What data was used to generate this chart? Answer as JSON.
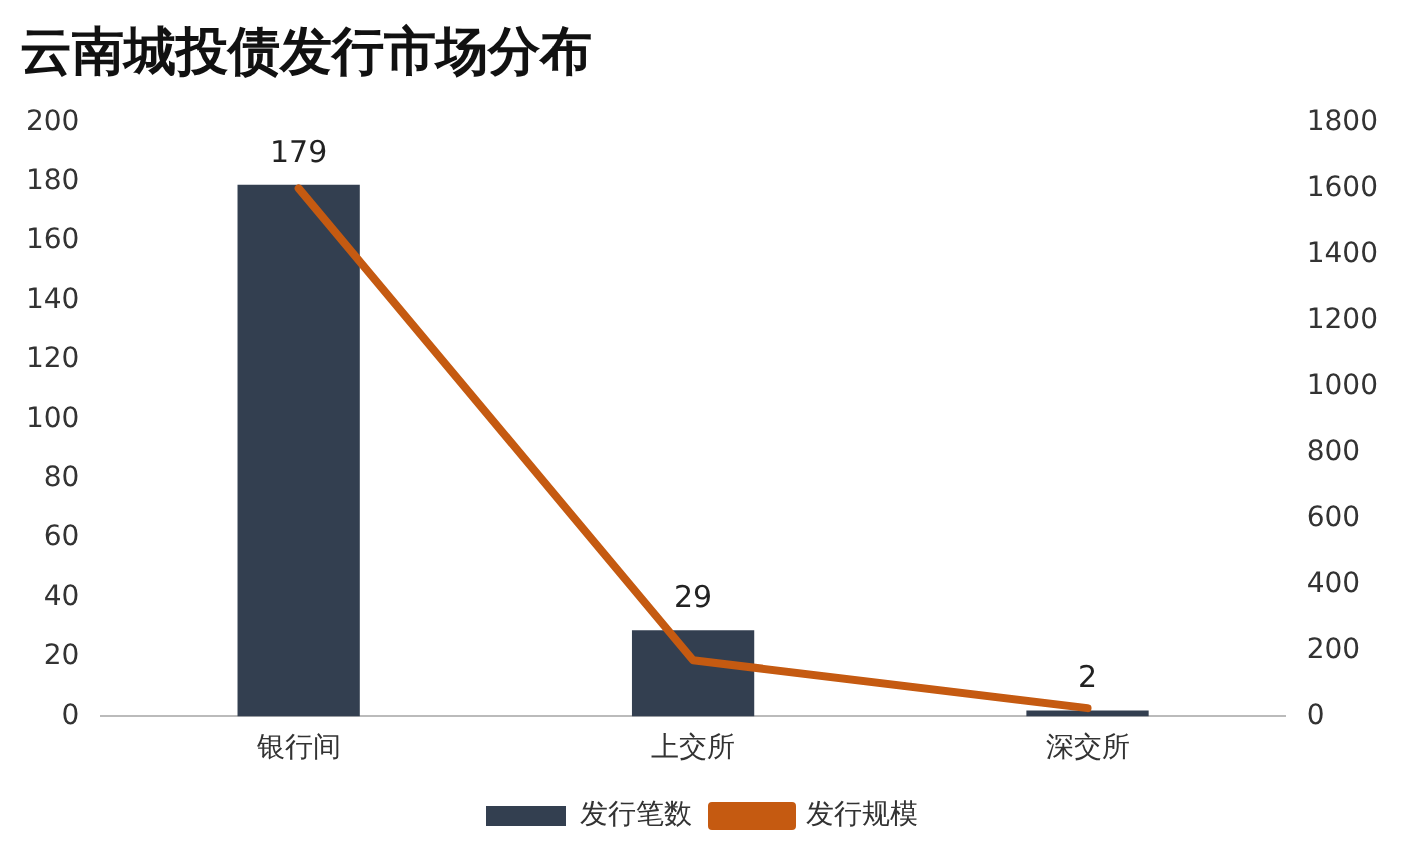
{
  "chart_data": {
    "type": "bar",
    "title": "云南城投债发行市场分布",
    "categories": [
      "银行间",
      "上交所",
      "深交所"
    ],
    "series": [
      {
        "name": "发行笔数",
        "color": "#333f50",
        "values": [
          179,
          29,
          2
        ],
        "value_labels": [
          "179",
          "29",
          "2"
        ]
      },
      {
        "name": "发行规模",
        "type": "line",
        "axis": "y2",
        "color": "#c55a11",
        "values": [
          1600,
          170,
          25
        ]
      }
    ],
    "ylim": [
      0,
      200
    ],
    "yticks": [
      0,
      20,
      40,
      60,
      80,
      100,
      120,
      140,
      160,
      180,
      200
    ],
    "y2lim": [
      0,
      1800
    ],
    "y2ticks": [
      0,
      200,
      400,
      600,
      800,
      1000,
      1200,
      1400,
      1600,
      1800
    ],
    "grid": false,
    "legend": "bottom",
    "marker": "none",
    "line_style": "solid"
  }
}
